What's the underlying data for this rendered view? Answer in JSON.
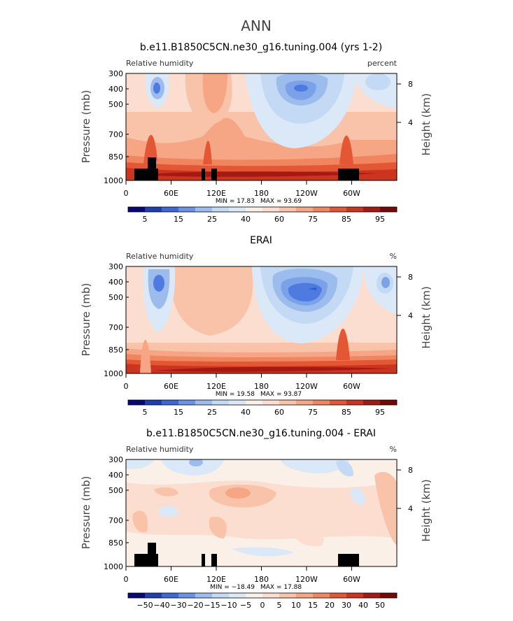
{
  "figure_title": "ANN",
  "chart_data": [
    {
      "type": "heatmap",
      "title": "b.e11.B1850C5CN.ne30_g16.tuning.004 (yrs 1-2)",
      "left_label": "Relative humidity",
      "right_label": "percent",
      "ylabel": "Pressure (mb)",
      "ylabel_right": "Height (km)",
      "yticks": [
        "300",
        "400",
        "500",
        "700",
        "850",
        "1000"
      ],
      "yticks_right": [
        "8",
        "4"
      ],
      "xticks": [
        "0",
        "60E",
        "120E",
        "180",
        "120W",
        "60W"
      ],
      "min_text": "MIN =   17.83",
      "max_text": "MAX =   93.69",
      "colorbar_labels": [
        "5",
        "15",
        "25",
        "40",
        "60",
        "75",
        "85",
        "95"
      ],
      "ylim": [
        1000,
        300
      ]
    },
    {
      "type": "heatmap",
      "title": "ERAI",
      "left_label": "Relative humidity",
      "right_label": "%",
      "ylabel": "Pressure (mb)",
      "ylabel_right": "Height (km)",
      "yticks": [
        "300",
        "400",
        "500",
        "700",
        "850",
        "1000"
      ],
      "yticks_right": [
        "8",
        "4"
      ],
      "xticks": [
        "0",
        "60E",
        "120E",
        "180",
        "120W",
        "60W"
      ],
      "min_text": "MIN =   19.58",
      "max_text": "MAX =   93.87",
      "colorbar_labels": [
        "5",
        "15",
        "25",
        "40",
        "60",
        "75",
        "85",
        "95"
      ],
      "ylim": [
        1000,
        300
      ]
    },
    {
      "type": "heatmap",
      "title": "b.e11.B1850C5CN.ne30_g16.tuning.004 - ERAI",
      "left_label": "Relative humidity",
      "right_label": "%",
      "ylabel": "Pressure (mb)",
      "ylabel_right": "Height (km)",
      "yticks": [
        "300",
        "400",
        "500",
        "700",
        "850",
        "1000"
      ],
      "yticks_right": [
        "8",
        "4"
      ],
      "xticks": [
        "0",
        "60E",
        "120E",
        "180",
        "120W",
        "60W"
      ],
      "min_text": "MIN = −18.49",
      "max_text": "MAX =   17.88",
      "colorbar_labels": [
        "−50",
        "−40",
        "−30",
        "−20",
        "−15",
        "−10",
        "−5",
        "0",
        "5",
        "10",
        "15",
        "20",
        "30",
        "40",
        "50"
      ],
      "ylim": [
        1000,
        300
      ]
    }
  ]
}
